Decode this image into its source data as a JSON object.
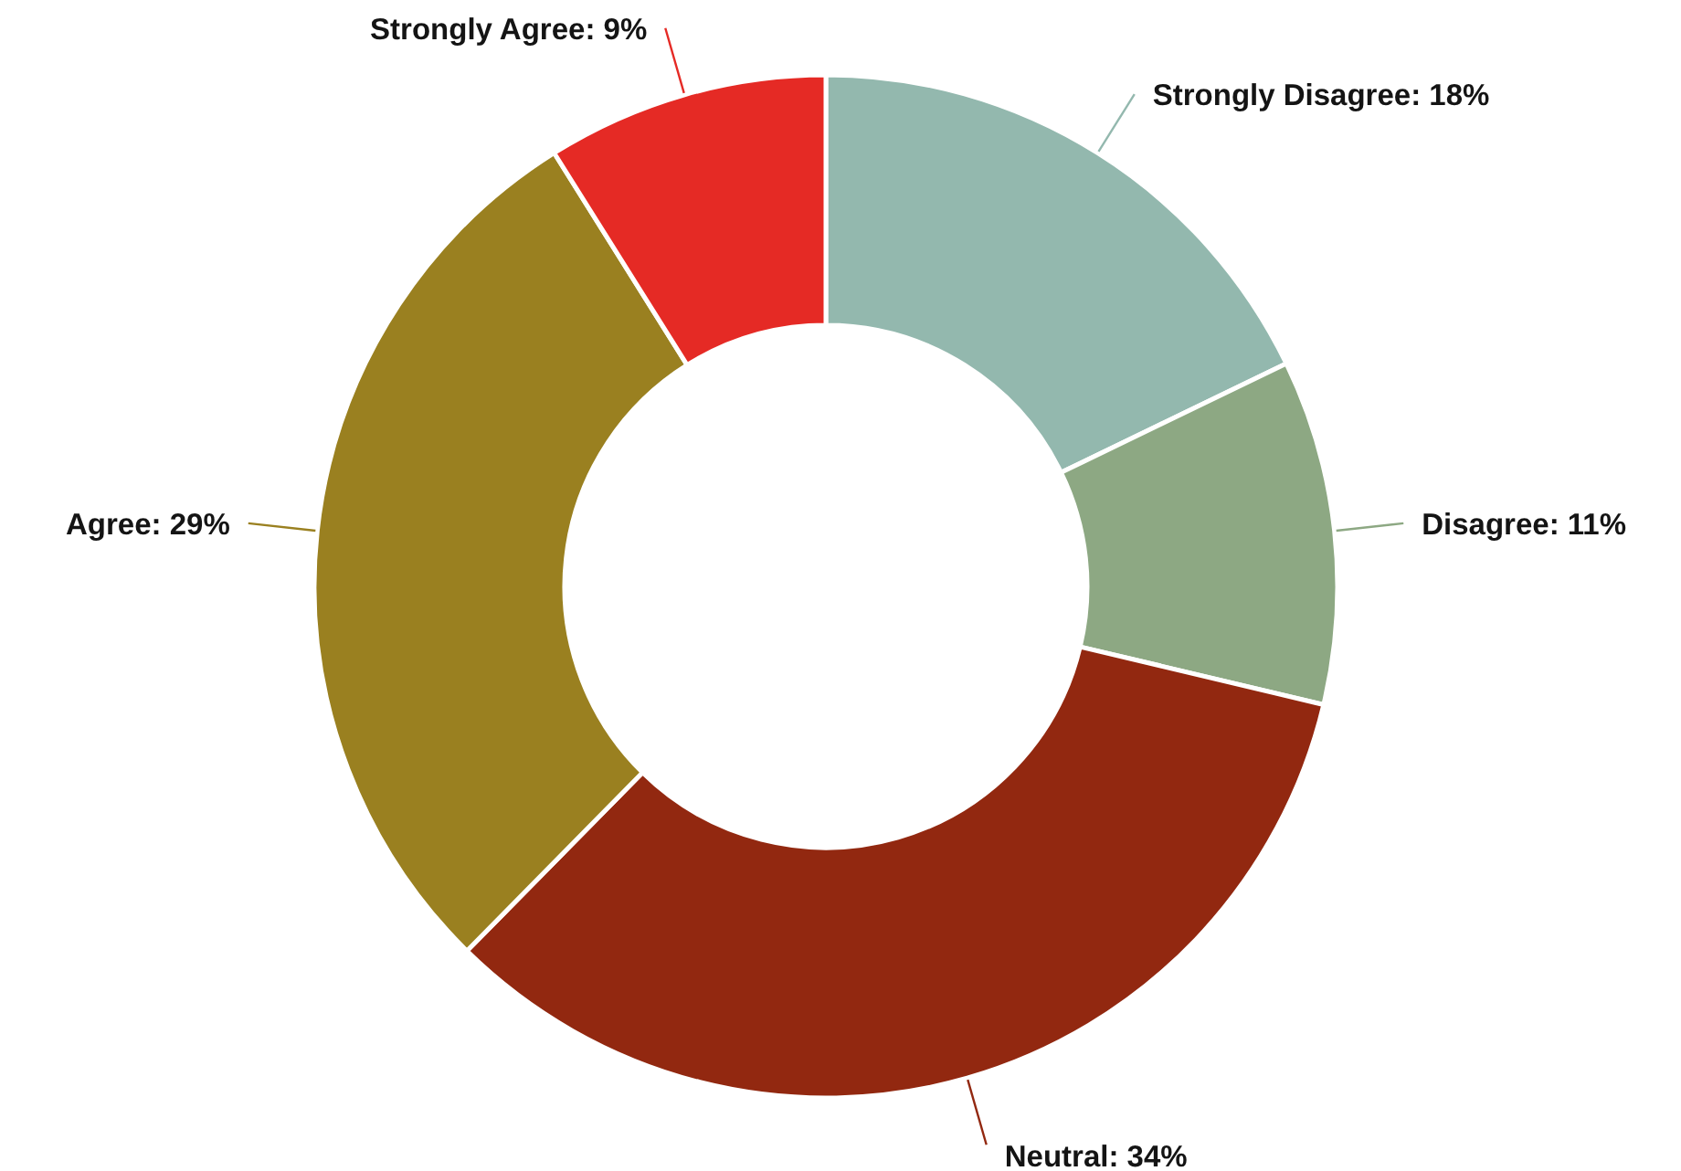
{
  "chart_data": {
    "type": "donut",
    "categories": [
      "Strongly Disagree",
      "Disagree",
      "Neutral",
      "Agree",
      "Strongly Agree"
    ],
    "values": [
      18,
      11,
      34,
      29,
      9
    ],
    "value_labels": [
      "18%",
      "11%",
      "34%",
      "29%",
      "9%"
    ],
    "colors": [
      "#93b8ae",
      "#8da883",
      "#922810",
      "#9a8020",
      "#e52a25"
    ]
  }
}
